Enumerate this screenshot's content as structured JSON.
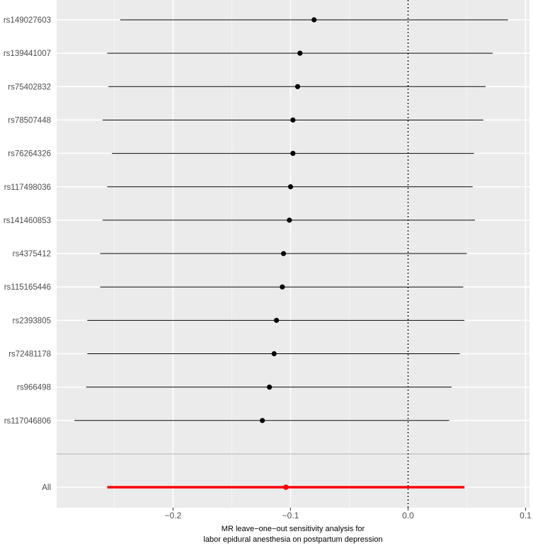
{
  "chart_data": {
    "type": "forest",
    "title": "",
    "xlabel_lines": [
      "MR leave−one−out sensitivity analysis for",
      "labor epidural anesthesia on postpartum depression"
    ],
    "ylabel": "",
    "xlim": [
      -0.3,
      0.1
    ],
    "xticks": [
      -0.2,
      -0.1,
      0.0,
      0.1
    ],
    "xtick_labels": [
      "−0.2",
      "−0.1",
      "0.0",
      "0.1"
    ],
    "reference_line": 0,
    "grid": true,
    "rows": [
      {
        "label": "rs149027603",
        "b": -0.08,
        "lo": -0.245,
        "hi": 0.085
      },
      {
        "label": "rs139441007",
        "b": -0.092,
        "lo": -0.256,
        "hi": 0.072
      },
      {
        "label": "rs75402832",
        "b": -0.094,
        "lo": -0.255,
        "hi": 0.066
      },
      {
        "label": "rs78507448",
        "b": -0.098,
        "lo": -0.26,
        "hi": 0.064
      },
      {
        "label": "rs76264326",
        "b": -0.098,
        "lo": -0.252,
        "hi": 0.056
      },
      {
        "label": "rs117498036",
        "b": -0.1,
        "lo": -0.256,
        "hi": 0.055
      },
      {
        "label": "rs141460853",
        "b": -0.101,
        "lo": -0.26,
        "hi": 0.057
      },
      {
        "label": "rs4375412",
        "b": -0.106,
        "lo": -0.262,
        "hi": 0.05
      },
      {
        "label": "rs115165446",
        "b": -0.107,
        "lo": -0.262,
        "hi": 0.047
      },
      {
        "label": "rs2393805",
        "b": -0.112,
        "lo": -0.273,
        "hi": 0.048
      },
      {
        "label": "rs72481178",
        "b": -0.114,
        "lo": -0.273,
        "hi": 0.044
      },
      {
        "label": "rs966498",
        "b": -0.118,
        "lo": -0.274,
        "hi": 0.037
      },
      {
        "label": "rs117046806",
        "b": -0.124,
        "lo": -0.284,
        "hi": 0.035
      }
    ],
    "overall": {
      "label": "All",
      "b": -0.104,
      "lo": -0.256,
      "hi": 0.048
    },
    "colors": {
      "panel": "#ebebeb",
      "grid_major": "#ffffff",
      "point": "#000000",
      "overall": "#ff0000",
      "separator": "#bebebe"
    }
  }
}
